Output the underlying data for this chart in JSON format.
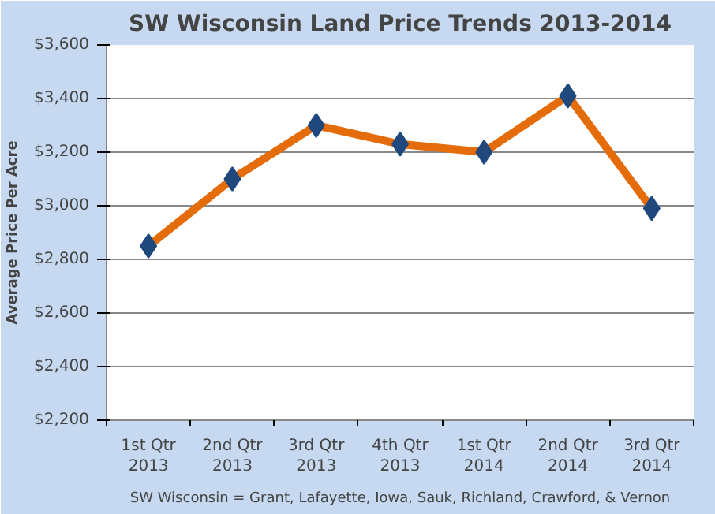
{
  "chart_data": {
    "type": "line",
    "title": "SW Wisconsin Land Price Trends 2013-2014",
    "ylabel": "Average Price Per Acre",
    "categories": [
      "1st Qtr\n2013",
      "2nd Qtr\n2013",
      "3rd Qtr\n2013",
      "4th Qtr\n2013",
      "1st Qtr\n2014",
      "2nd Qtr\n2014",
      "3rd Qtr\n2014"
    ],
    "series": [
      {
        "color": "#e46c0a",
        "colors": [
          "#1f497d",
          "#1f497d",
          "#1f497d",
          "#1f497d",
          "#1f497d",
          "#1f497d",
          "#1f497d"
        ],
        "values": [
          2850,
          3100,
          3300,
          3230,
          3200,
          3410,
          2990
        ]
      }
    ],
    "ylim": [
      2200,
      3600
    ],
    "yticks": [
      {
        "value": 2200,
        "label": "$2,200"
      },
      {
        "value": 2400,
        "label": "$2,400"
      },
      {
        "value": 2600,
        "label": "$2,600"
      },
      {
        "value": 2800,
        "label": "$2,800"
      },
      {
        "value": 3000,
        "label": "$3,000"
      },
      {
        "value": 3200,
        "label": "$3,200"
      },
      {
        "value": 3400,
        "label": "$3,400"
      },
      {
        "value": 3600,
        "label": "$3,600"
      }
    ],
    "grid": "y",
    "marker": "diamond",
    "line_style": "solid",
    "annotations": [
      "SW Wisconsin = Grant, Lafayette, Iowa, Sauk, Richland, Crawford, & Vernon"
    ]
  }
}
